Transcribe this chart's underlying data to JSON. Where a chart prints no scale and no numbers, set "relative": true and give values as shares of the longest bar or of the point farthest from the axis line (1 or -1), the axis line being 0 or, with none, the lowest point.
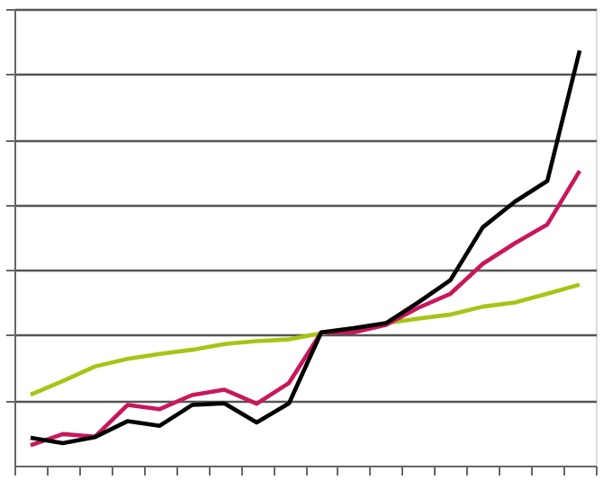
{
  "chart_data": {
    "type": "line",
    "relative": true,
    "tick_labels": false,
    "grid": "y",
    "line_style": "solid",
    "marker": "none",
    "categories": [
      null,
      null,
      null,
      null,
      null,
      null,
      null,
      null,
      null,
      null,
      null,
      null,
      null,
      null,
      null,
      null,
      null,
      null
    ],
    "series": [
      {
        "color": "#a8c414",
        "values": [
          0.171,
          0.204,
          0.239,
          0.257,
          0.269,
          0.279,
          0.293,
          0.3,
          0.304,
          0.319,
          0.329,
          0.343,
          0.354,
          0.364,
          0.383,
          0.393,
          0.414,
          0.436
        ]
      },
      {
        "color": "#c8175d",
        "values": [
          0.049,
          0.076,
          0.07,
          0.146,
          0.136,
          0.17,
          0.183,
          0.149,
          0.199,
          0.321,
          0.321,
          0.339,
          0.38,
          0.414,
          0.486,
          0.536,
          0.581,
          0.71
        ]
      },
      {
        "color": "#000000",
        "values": [
          0.067,
          0.054,
          0.069,
          0.107,
          0.096,
          0.146,
          0.15,
          0.104,
          0.15,
          0.321,
          0.331,
          0.343,
          0.393,
          0.447,
          0.574,
          0.636,
          0.686,
          1
        ]
      }
    ]
  }
}
